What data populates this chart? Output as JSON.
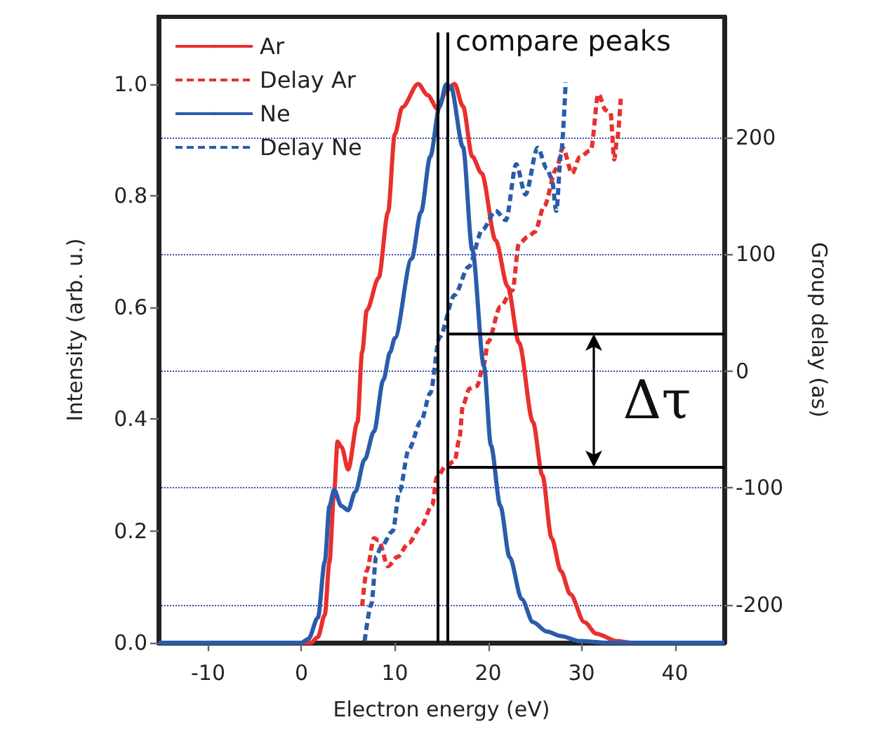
{
  "chart_data": {
    "type": "line",
    "xlabel": "Electron energy (eV)",
    "ylabel": "Intensity (arb. u.)",
    "y2label": "Group delay (as)",
    "xlim": [
      -15.3,
      45.3
    ],
    "xticks": [
      -10,
      0,
      10,
      20,
      30,
      40
    ],
    "ylim": [
      0,
      1.12
    ],
    "yticks": [
      {
        "value": 0,
        "label": "0.0"
      },
      0.2,
      0.4,
      0.6,
      0.8,
      {
        "value": 1,
        "label": "1.0"
      }
    ],
    "y2lim": [
      -232.5,
      303
    ],
    "y2ticks": [
      -200,
      -100,
      0,
      100,
      200
    ],
    "grid": "y2",
    "legend": "top left",
    "marker": "none",
    "series": [
      {
        "name": "Ar",
        "color": "#e8302e",
        "line_style": "solid",
        "x": [
          -15.3,
          1.0,
          1.76,
          2.5,
          3.0,
          3.5,
          3.86,
          4.3,
          5.0,
          6.0,
          6.5,
          7.0,
          8.27,
          9.27,
          10.0,
          10.8,
          12.5,
          13.5,
          14.6,
          15.5,
          16.4,
          17.3,
          18.3,
          19.3,
          20.8,
          22.1,
          23.3,
          24.8,
          25.8,
          26.8,
          27.8,
          28.8,
          30.3,
          31.6,
          33.8,
          35.3,
          45.3
        ],
        "values": [
          0,
          0,
          0.01,
          0.05,
          0.145,
          0.27,
          0.36,
          0.35,
          0.31,
          0.395,
          0.52,
          0.595,
          0.653,
          0.77,
          0.91,
          0.958,
          1.0,
          0.98,
          0.955,
          0.987,
          1.0,
          0.96,
          0.87,
          0.84,
          0.72,
          0.637,
          0.537,
          0.395,
          0.3,
          0.187,
          0.128,
          0.087,
          0.037,
          0.016,
          0.003,
          0,
          0
        ]
      },
      {
        "name": "Delay Ar",
        "color": "#e8302e",
        "line_style": "dashed",
        "axis": "y2",
        "x": [
          6.5,
          7.0,
          7.77,
          8.27,
          9.27,
          10.3,
          11.5,
          12.8,
          14.0,
          14.5,
          15.5,
          16.4,
          16.9,
          17.3,
          18.0,
          18.8,
          19.5,
          20.0,
          21.3,
          22.6,
          23.3,
          24.3,
          25.0,
          26.0,
          27.3,
          28.0,
          29.0,
          29.8,
          31.0,
          31.8,
          32.6,
          33.1,
          33.5,
          33.8,
          34.2
        ],
        "values": [
          -201,
          -171,
          -143,
          -145,
          -167,
          -159,
          -147,
          -133,
          -115,
          -91,
          -81,
          -77,
          -59,
          -29,
          -15,
          -13,
          5,
          25,
          55,
          69,
          109,
          115,
          119,
          141,
          173,
          191,
          169,
          183,
          189,
          237,
          223,
          221,
          181,
          197,
          233
        ]
      },
      {
        "name": "Ne",
        "color": "#2a5caa",
        "line_style": "solid",
        "x": [
          -15.3,
          0.0,
          0.75,
          1.76,
          2.5,
          3.0,
          3.5,
          4.26,
          5.0,
          5.76,
          6.77,
          7.77,
          8.77,
          9.5,
          10.0,
          11.8,
          12.8,
          13.8,
          14.8,
          15.5,
          16.0,
          17.3,
          18.3,
          19.55,
          20.3,
          21.3,
          22.3,
          23.6,
          24.8,
          26.3,
          27.8,
          29.8,
          32.8,
          45.3
        ],
        "values": [
          0,
          0,
          0.007,
          0.045,
          0.145,
          0.245,
          0.274,
          0.245,
          0.237,
          0.27,
          0.328,
          0.378,
          0.47,
          0.52,
          0.545,
          0.687,
          0.77,
          0.87,
          0.96,
          0.999,
          0.995,
          0.887,
          0.703,
          0.495,
          0.353,
          0.245,
          0.153,
          0.078,
          0.037,
          0.02,
          0.012,
          0.003,
          0,
          0
        ]
      },
      {
        "name": "Delay Ne",
        "color": "#2a5caa",
        "line_style": "dashed",
        "axis": "y2",
        "x": [
          6.77,
          7.5,
          8.0,
          8.5,
          9.77,
          10.5,
          11.5,
          12.8,
          13.8,
          14.8,
          16.4,
          17.9,
          19.4,
          20.8,
          21.9,
          23.0,
          24.0,
          25.3,
          26.3,
          26.8,
          27.3,
          27.8,
          28.3
        ],
        "values": [
          -231,
          -199,
          -159,
          -151,
          -137,
          -103,
          -67,
          -43,
          -19,
          29,
          65,
          89,
          121,
          137,
          129,
          177,
          151,
          191,
          173,
          165,
          137,
          185,
          247
        ]
      }
    ],
    "ref_lines": [
      {
        "axis": "x",
        "value": 14.6,
        "color": "#000000"
      },
      {
        "axis": "x",
        "value": 15.6,
        "label": "compare peaks",
        "color": "#000000"
      },
      {
        "axis": "y2",
        "value": 32,
        "color": "#000000"
      },
      {
        "axis": "y2",
        "value": -82,
        "color": "#000000"
      }
    ],
    "annotations": [
      "Δτ"
    ]
  }
}
